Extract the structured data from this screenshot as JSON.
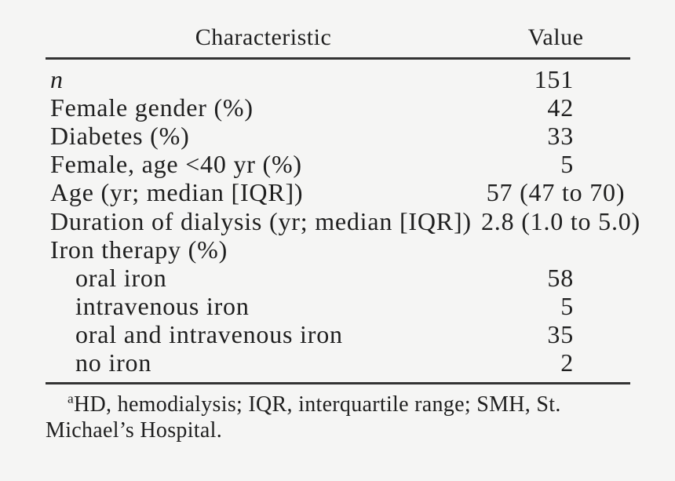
{
  "table": {
    "columns": {
      "characteristic": "Characteristic",
      "value": "Value"
    },
    "rows": [
      {
        "label": "n",
        "value": "151"
      },
      {
        "label": "Female gender (%)",
        "value": "42"
      },
      {
        "label": "Diabetes (%)",
        "value": "33"
      },
      {
        "label": "Female, age <40 yr (%)",
        "value": "5"
      },
      {
        "label": "Age (yr; median [IQR])",
        "value": "57 (47 to 70)"
      },
      {
        "label": "Duration of dialysis (yr; median [IQR])",
        "value": "2.8 (1.0 to 5.0)"
      },
      {
        "label": "Iron therapy (%)",
        "value": ""
      },
      {
        "label": "oral iron",
        "value": "58"
      },
      {
        "label": "intravenous iron",
        "value": "5"
      },
      {
        "label": "oral and intravenous iron",
        "value": "35"
      },
      {
        "label": "no iron",
        "value": "2"
      }
    ],
    "footnote": {
      "marker": "a",
      "line1": "HD, hemodialysis; IQR, interquartile range; SMH, St.",
      "line2": "Michael’s Hospital."
    }
  },
  "colors": {
    "background": "#f5f5f4",
    "text": "#1f1f1f",
    "rule": "#333333"
  }
}
